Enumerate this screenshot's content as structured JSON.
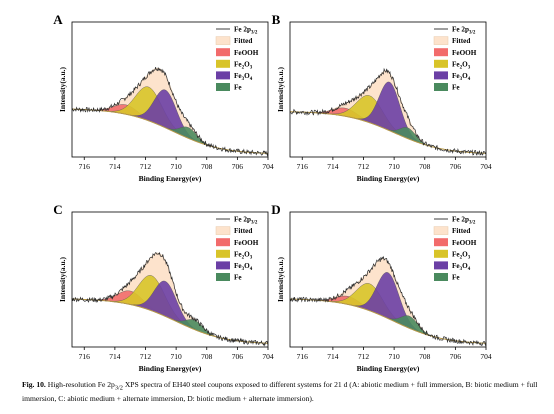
{
  "caption": {
    "label": "Fig. 10.",
    "text_before": "High-resolution Fe 2p",
    "text_sub": "3/2",
    "text_after": " XPS spectra of EH40 steel coupons exposed to different systems for 21 d (A: abiotic medium + full immersion, B: biotic medium + full immersion, C: abiotic medium + alternate immersion, D: biotic medium + alternate immersion)."
  },
  "colors": {
    "raw": "#2a2a2a",
    "fitted": "#fde3cc",
    "feooh": "#f26b6b",
    "fe2o3": "#d8c429",
    "fe3o4": "#6b3fa5",
    "fe": "#4a8a5e",
    "background": "#b89a4a"
  },
  "legend_items": [
    {
      "key": "raw",
      "main": "Fe 2p",
      "sub": "3/2",
      "after": ""
    },
    {
      "key": "fitted",
      "main": "Fitted",
      "sub": "",
      "after": ""
    },
    {
      "key": "feooh",
      "main": "FeOOH",
      "sub": "",
      "after": ""
    },
    {
      "key": "fe2o3",
      "main": "Fe",
      "sub": "2",
      "after": "O",
      "sub2": "3"
    },
    {
      "key": "fe3o4",
      "main": "Fe",
      "sub": "3",
      "after": "O",
      "sub2": "4"
    },
    {
      "key": "fe",
      "main": "Fe",
      "sub": "",
      "after": ""
    }
  ],
  "chart_data": [
    {
      "panel": "A",
      "type": "area",
      "xlabel": "Binding Energy(ev)",
      "ylabel": "Intensity(a.u.)",
      "xlim": [
        716.8,
        704
      ],
      "xticks": [
        716,
        714,
        712,
        710,
        708,
        706,
        704
      ],
      "background": {
        "start": 0.36,
        "end": 0.02,
        "center": 710.2,
        "width": 1.6
      },
      "peaks": [
        {
          "name": "FeOOH",
          "center": 713.3,
          "height": 0.07,
          "fwhm": 1.8
        },
        {
          "name": "Fe2O3",
          "center": 711.8,
          "height": 0.25,
          "fwhm": 2.0
        },
        {
          "name": "Fe3O4",
          "center": 710.7,
          "height": 0.28,
          "fwhm": 1.7
        },
        {
          "name": "Fe",
          "center": 709.2,
          "height": 0.08,
          "fwhm": 1.3
        }
      ]
    },
    {
      "panel": "B",
      "type": "area",
      "xlabel": "Binding Energy(ev)",
      "ylabel": "Intensity(a.u.)",
      "xlim": [
        716.8,
        704
      ],
      "xticks": [
        716,
        714,
        712,
        710,
        708,
        706,
        704
      ],
      "background": {
        "start": 0.34,
        "end": 0.02,
        "center": 710.0,
        "width": 1.6
      },
      "peaks": [
        {
          "name": "FeOOH",
          "center": 713.2,
          "height": 0.06,
          "fwhm": 1.8
        },
        {
          "name": "Fe2O3",
          "center": 711.6,
          "height": 0.2,
          "fwhm": 2.0
        },
        {
          "name": "Fe3O4",
          "center": 710.3,
          "height": 0.36,
          "fwhm": 1.6
        },
        {
          "name": "Fe",
          "center": 709.1,
          "height": 0.08,
          "fwhm": 1.2
        }
      ]
    },
    {
      "panel": "C",
      "type": "area",
      "xlabel": "Binding Energy(ev)",
      "ylabel": "Intensity(a.u.)",
      "xlim": [
        716.8,
        704
      ],
      "xticks": [
        716,
        714,
        712,
        710,
        708,
        706,
        704
      ],
      "background": {
        "start": 0.36,
        "end": 0.02,
        "center": 710.0,
        "width": 1.6
      },
      "peaks": [
        {
          "name": "FeOOH",
          "center": 713.0,
          "height": 0.1,
          "fwhm": 1.9
        },
        {
          "name": "Fe2O3",
          "center": 711.6,
          "height": 0.26,
          "fwhm": 2.0
        },
        {
          "name": "Fe3O4",
          "center": 710.7,
          "height": 0.26,
          "fwhm": 1.7
        },
        {
          "name": "Fe",
          "center": 708.8,
          "height": 0.07,
          "fwhm": 1.3
        }
      ]
    },
    {
      "panel": "D",
      "type": "area",
      "xlabel": "Binding Energy(ev)",
      "ylabel": "Intensity(a.u.)",
      "xlim": [
        716.8,
        704
      ],
      "xticks": [
        716,
        714,
        712,
        710,
        708,
        706,
        704
      ],
      "background": {
        "start": 0.36,
        "end": 0.02,
        "center": 710.0,
        "width": 1.6
      },
      "peaks": [
        {
          "name": "FeOOH",
          "center": 713.0,
          "height": 0.06,
          "fwhm": 1.8
        },
        {
          "name": "Fe2O3",
          "center": 711.6,
          "height": 0.2,
          "fwhm": 2.0
        },
        {
          "name": "Fe3O4",
          "center": 710.4,
          "height": 0.34,
          "fwhm": 1.7
        },
        {
          "name": "Fe",
          "center": 709.0,
          "height": 0.09,
          "fwhm": 1.3
        }
      ]
    }
  ]
}
